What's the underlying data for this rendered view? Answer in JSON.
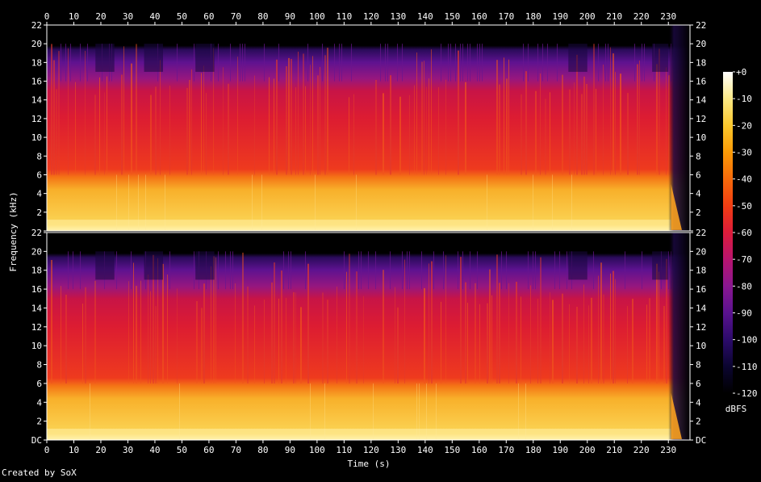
{
  "chart_data": {
    "type": "heatmap",
    "subtype": "spectrogram",
    "channels": 2,
    "xlabel": "Time (s)",
    "ylabel": "Frequency (kHz)",
    "x_ticks": [
      0,
      10,
      20,
      30,
      40,
      50,
      60,
      70,
      80,
      90,
      100,
      110,
      120,
      130,
      140,
      150,
      160,
      170,
      180,
      190,
      200,
      210,
      220,
      230
    ],
    "xlim": [
      0,
      238
    ],
    "y_ticks": [
      0,
      2,
      4,
      6,
      8,
      10,
      12,
      14,
      16,
      18,
      20,
      22
    ],
    "y_tick_labels": [
      "DC",
      "2",
      "4",
      "6",
      "8",
      "10",
      "12",
      "14",
      "16",
      "18",
      "20",
      "22"
    ],
    "y_tick_labels_upper": [
      "",
      "2",
      "4",
      "6",
      "8",
      "10",
      "12",
      "14",
      "16",
      "18",
      "20",
      "22"
    ],
    "ylim": [
      0,
      22
    ],
    "colorbar": {
      "label": "dBFS",
      "ticks": [
        0,
        -10,
        -20,
        -30,
        -40,
        -50,
        -60,
        -70,
        -80,
        -90,
        -100,
        -110,
        -120
      ],
      "tick_labels": [
        "+0",
        "-10",
        "-20",
        "-30",
        "-40",
        "-50",
        "-60",
        "-70",
        "-80",
        "-90",
        "-100",
        "-110",
        "-120"
      ],
      "range": [
        -120,
        0
      ],
      "colors": [
        "#000000",
        "#0b0530",
        "#2c0b6b",
        "#5a128f",
        "#8a1790",
        "#b8146e",
        "#dd1c3a",
        "#f23d12",
        "#f66a0a",
        "#fb9a06",
        "#fbc72c",
        "#fbe986",
        "#ffffff"
      ]
    },
    "estimated_levels": {
      "band_below_6kHz_dBFS": -35,
      "band_6_to_16kHz_dBFS": -55,
      "band_16_to_20kHz_dBFS": -85,
      "above_20kHz_dBFS": -120,
      "fade_out_start_s": 230
    }
  },
  "footer": {
    "credit": "Created by SoX"
  }
}
